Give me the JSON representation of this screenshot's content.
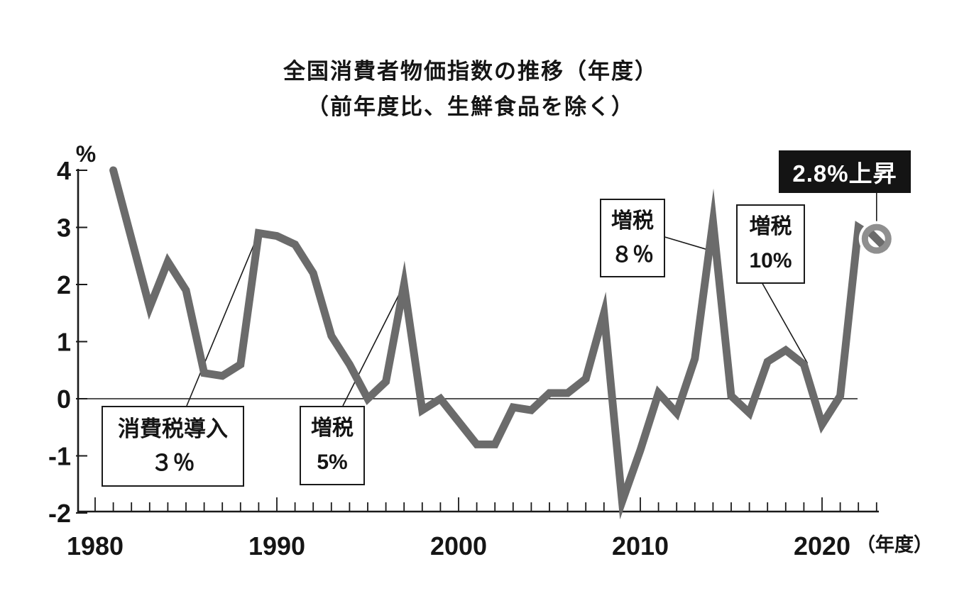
{
  "title": {
    "line1": "全国消費者物価指数の推移（年度）",
    "line2": "（前年度比、生鮮食品を除く）"
  },
  "chart_data": {
    "type": "line",
    "unit_label": "%",
    "x_axis_suffix": "（年度）",
    "x_tick_years_labeled": [
      1980,
      1990,
      2000,
      2010,
      2020
    ],
    "x_tick_range": [
      1980,
      2023
    ],
    "y_ticks": [
      4,
      3,
      2,
      1,
      0,
      -1,
      -2
    ],
    "ylim": [
      -2,
      4
    ],
    "grid": "zero-line-only",
    "line_color": "#6b6b6b",
    "marker_ring_color": "#8f8f8f",
    "x_years": [
      1981,
      1982,
      1983,
      1984,
      1985,
      1986,
      1987,
      1988,
      1989,
      1990,
      1991,
      1992,
      1993,
      1994,
      1995,
      1996,
      1997,
      1998,
      1999,
      2000,
      2001,
      2002,
      2003,
      2004,
      2005,
      2006,
      2007,
      2008,
      2009,
      2010,
      2011,
      2012,
      2013,
      2014,
      2015,
      2016,
      2017,
      2018,
      2019,
      2020,
      2021,
      2022,
      2023
    ],
    "values": [
      4.0,
      2.8,
      1.6,
      2.4,
      1.9,
      0.45,
      0.4,
      0.6,
      2.9,
      2.85,
      2.7,
      2.2,
      1.1,
      0.6,
      0.0,
      0.3,
      2.0,
      -0.2,
      0.0,
      -0.4,
      -0.8,
      -0.8,
      -0.15,
      -0.2,
      0.1,
      0.1,
      0.35,
      1.5,
      -1.8,
      -0.9,
      0.1,
      -0.25,
      0.7,
      3.1,
      0.05,
      -0.25,
      0.65,
      0.85,
      0.6,
      -0.45,
      0.05,
      3.0,
      2.8
    ],
    "annotations": [
      {
        "id": "tax-intro-3",
        "lines": [
          "消費税導入",
          "３％"
        ],
        "target_year": 1989
      },
      {
        "id": "tax-5",
        "lines": [
          "増税",
          "5%"
        ],
        "target_year": 1997
      },
      {
        "id": "tax-8",
        "lines": [
          "増税",
          "８％"
        ],
        "target_year": 2014
      },
      {
        "id": "tax-10",
        "lines": [
          "増税",
          "10%"
        ],
        "target_year": 2019
      },
      {
        "id": "latest",
        "lines": [
          "2.8%上昇"
        ],
        "target_year": 2023,
        "style": "black-badge"
      }
    ],
    "end_marker_year": 2023
  }
}
